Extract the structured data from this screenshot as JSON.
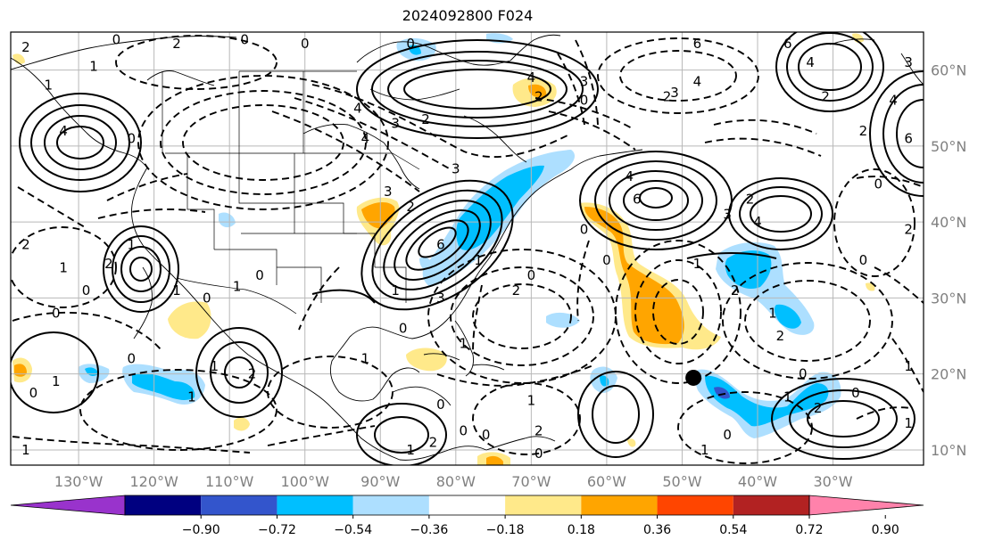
{
  "title": "2024092800 F024",
  "map": {
    "lon_range": [
      -139,
      -18
    ],
    "lat_range": [
      8,
      65
    ],
    "lon_labels": [
      {
        "lon": -130,
        "text": "130°W"
      },
      {
        "lon": -120,
        "text": "120°W"
      },
      {
        "lon": -110,
        "text": "110°W"
      },
      {
        "lon": -100,
        "text": "100°W"
      },
      {
        "lon": -90,
        "text": "90°W"
      },
      {
        "lon": -80,
        "text": "80°W"
      },
      {
        "lon": -70,
        "text": "70°W"
      },
      {
        "lon": -60,
        "text": "60°W"
      },
      {
        "lon": -50,
        "text": "50°W"
      },
      {
        "lon": -40,
        "text": "40°W"
      },
      {
        "lon": -30,
        "text": "30°W"
      }
    ],
    "lat_labels": [
      {
        "lat": 60,
        "text": "60°N"
      },
      {
        "lat": 50,
        "text": "50°N"
      },
      {
        "lat": 40,
        "text": "40°N"
      },
      {
        "lat": 30,
        "text": "30°N"
      },
      {
        "lat": 20,
        "text": "20°N"
      },
      {
        "lat": 10,
        "text": "10°N"
      }
    ],
    "grid": true,
    "marker": {
      "lon": -48.5,
      "lat": 19.5,
      "color": "#000000"
    }
  },
  "colorbar": {
    "colors": [
      "#9933cc",
      "#000080",
      "#3355cc",
      "#00bfff",
      "#addfff",
      "#ffffff",
      "#ffe98a",
      "#ffa500",
      "#ff4500",
      "#b22222",
      "#ff82ab"
    ],
    "ticks": [
      "−0.90",
      "−0.72",
      "−0.54",
      "−0.36",
      "−0.18",
      "0.18",
      "0.36",
      "0.54",
      "0.72",
      "0.90"
    ]
  },
  "contour_labels": [
    {
      "lon": -137,
      "lat": 63,
      "text": "2"
    },
    {
      "lon": -125,
      "lat": 64,
      "text": "0"
    },
    {
      "lon": -117,
      "lat": 63.5,
      "text": "2"
    },
    {
      "lon": -128,
      "lat": 60.5,
      "text": "1"
    },
    {
      "lon": -134,
      "lat": 58,
      "text": "1"
    },
    {
      "lon": -132,
      "lat": 52,
      "text": "4"
    },
    {
      "lon": -123,
      "lat": 51,
      "text": "0"
    },
    {
      "lon": -100,
      "lat": 63.5,
      "text": "0"
    },
    {
      "lon": -108,
      "lat": 64,
      "text": "0"
    },
    {
      "lon": -86,
      "lat": 63.5,
      "text": "0"
    },
    {
      "lon": -93,
      "lat": 55,
      "text": "4"
    },
    {
      "lon": -69,
      "lat": 56.5,
      "text": "2"
    },
    {
      "lon": -63,
      "lat": 56,
      "text": "0"
    },
    {
      "lon": -70,
      "lat": 59,
      "text": "4"
    },
    {
      "lon": -63,
      "lat": 58.5,
      "text": "3"
    },
    {
      "lon": -48,
      "lat": 63.5,
      "text": "6"
    },
    {
      "lon": -48,
      "lat": 58.5,
      "text": "4"
    },
    {
      "lon": -51,
      "lat": 57,
      "text": "3"
    },
    {
      "lon": -36,
      "lat": 63.5,
      "text": "6"
    },
    {
      "lon": -33,
      "lat": 61,
      "text": "4"
    },
    {
      "lon": -31,
      "lat": 56.5,
      "text": "2"
    },
    {
      "lon": -20,
      "lat": 61,
      "text": "3"
    },
    {
      "lon": -22,
      "lat": 56,
      "text": "4"
    },
    {
      "lon": -20,
      "lat": 51,
      "text": "6"
    },
    {
      "lon": -26,
      "lat": 52,
      "text": "2"
    },
    {
      "lon": -24,
      "lat": 45,
      "text": "0"
    },
    {
      "lon": -92,
      "lat": 51,
      "text": "4"
    },
    {
      "lon": -88,
      "lat": 53,
      "text": "3"
    },
    {
      "lon": -84,
      "lat": 53.5,
      "text": "2"
    },
    {
      "lon": -89,
      "lat": 44,
      "text": "3"
    },
    {
      "lon": -86,
      "lat": 42,
      "text": "2"
    },
    {
      "lon": -80,
      "lat": 47,
      "text": "3"
    },
    {
      "lon": -82,
      "lat": 37,
      "text": "6"
    },
    {
      "lon": -77,
      "lat": 35,
      "text": "1"
    },
    {
      "lon": -88,
      "lat": 31,
      "text": "1"
    },
    {
      "lon": -82,
      "lat": 30,
      "text": "3"
    },
    {
      "lon": -57,
      "lat": 46,
      "text": "4"
    },
    {
      "lon": -56,
      "lat": 43,
      "text": "6"
    },
    {
      "lon": -41,
      "lat": 43,
      "text": "2"
    },
    {
      "lon": -44,
      "lat": 41,
      "text": "3"
    },
    {
      "lon": -40,
      "lat": 40,
      "text": "4"
    },
    {
      "lon": -48,
      "lat": 34.5,
      "text": "1"
    },
    {
      "lon": -26,
      "lat": 35,
      "text": "0"
    },
    {
      "lon": -20,
      "lat": 39,
      "text": "2"
    },
    {
      "lon": -63,
      "lat": 39,
      "text": "0"
    },
    {
      "lon": -60,
      "lat": 35,
      "text": "0"
    },
    {
      "lon": -72,
      "lat": 31,
      "text": "2"
    },
    {
      "lon": -43,
      "lat": 31,
      "text": "2"
    },
    {
      "lon": -38,
      "lat": 28,
      "text": "1"
    },
    {
      "lon": -37,
      "lat": 25,
      "text": "2"
    },
    {
      "lon": -34,
      "lat": 20,
      "text": "0"
    },
    {
      "lon": -27,
      "lat": 17.5,
      "text": "0"
    },
    {
      "lon": -36,
      "lat": 17,
      "text": "1"
    },
    {
      "lon": -32,
      "lat": 15.5,
      "text": "2"
    },
    {
      "lon": -20,
      "lat": 21,
      "text": "1"
    },
    {
      "lon": -20,
      "lat": 13.5,
      "text": "1"
    },
    {
      "lon": -44,
      "lat": 12,
      "text": "0"
    },
    {
      "lon": -47,
      "lat": 10,
      "text": "1"
    },
    {
      "lon": -137,
      "lat": 37,
      "text": "2"
    },
    {
      "lon": -132,
      "lat": 34,
      "text": "1"
    },
    {
      "lon": -129,
      "lat": 31,
      "text": "0"
    },
    {
      "lon": -126,
      "lat": 34.5,
      "text": "2"
    },
    {
      "lon": -133,
      "lat": 28,
      "text": "0"
    },
    {
      "lon": -123,
      "lat": 37,
      "text": "1"
    },
    {
      "lon": -117,
      "lat": 31,
      "text": "1"
    },
    {
      "lon": -113,
      "lat": 30,
      "text": "0"
    },
    {
      "lon": -106,
      "lat": 33,
      "text": "0"
    },
    {
      "lon": -109,
      "lat": 31.5,
      "text": "1"
    },
    {
      "lon": -115,
      "lat": 17,
      "text": "1"
    },
    {
      "lon": -123,
      "lat": 22,
      "text": "0"
    },
    {
      "lon": -133,
      "lat": 19,
      "text": "1"
    },
    {
      "lon": -136,
      "lat": 17.5,
      "text": "0"
    },
    {
      "lon": -137,
      "lat": 10,
      "text": "1"
    },
    {
      "lon": -112,
      "lat": 21,
      "text": "1"
    },
    {
      "lon": -107,
      "lat": 20,
      "text": "2"
    },
    {
      "lon": -92,
      "lat": 22,
      "text": "1"
    },
    {
      "lon": -82,
      "lat": 16,
      "text": "0"
    },
    {
      "lon": -86,
      "lat": 10,
      "text": "1"
    },
    {
      "lon": -83,
      "lat": 11,
      "text": "2"
    },
    {
      "lon": -79,
      "lat": 12.5,
      "text": "0"
    },
    {
      "lon": -76,
      "lat": 12,
      "text": "0"
    },
    {
      "lon": -70,
      "lat": 16.5,
      "text": "1"
    },
    {
      "lon": -69,
      "lat": 12.5,
      "text": "2"
    },
    {
      "lon": -69,
      "lat": 9.5,
      "text": "0"
    },
    {
      "lon": -79,
      "lat": 24,
      "text": "1"
    },
    {
      "lon": -70,
      "lat": 33,
      "text": "0"
    },
    {
      "lon": -87,
      "lat": 26,
      "text": "0"
    },
    {
      "lon": -52,
      "lat": 56.5,
      "text": "2"
    }
  ]
}
